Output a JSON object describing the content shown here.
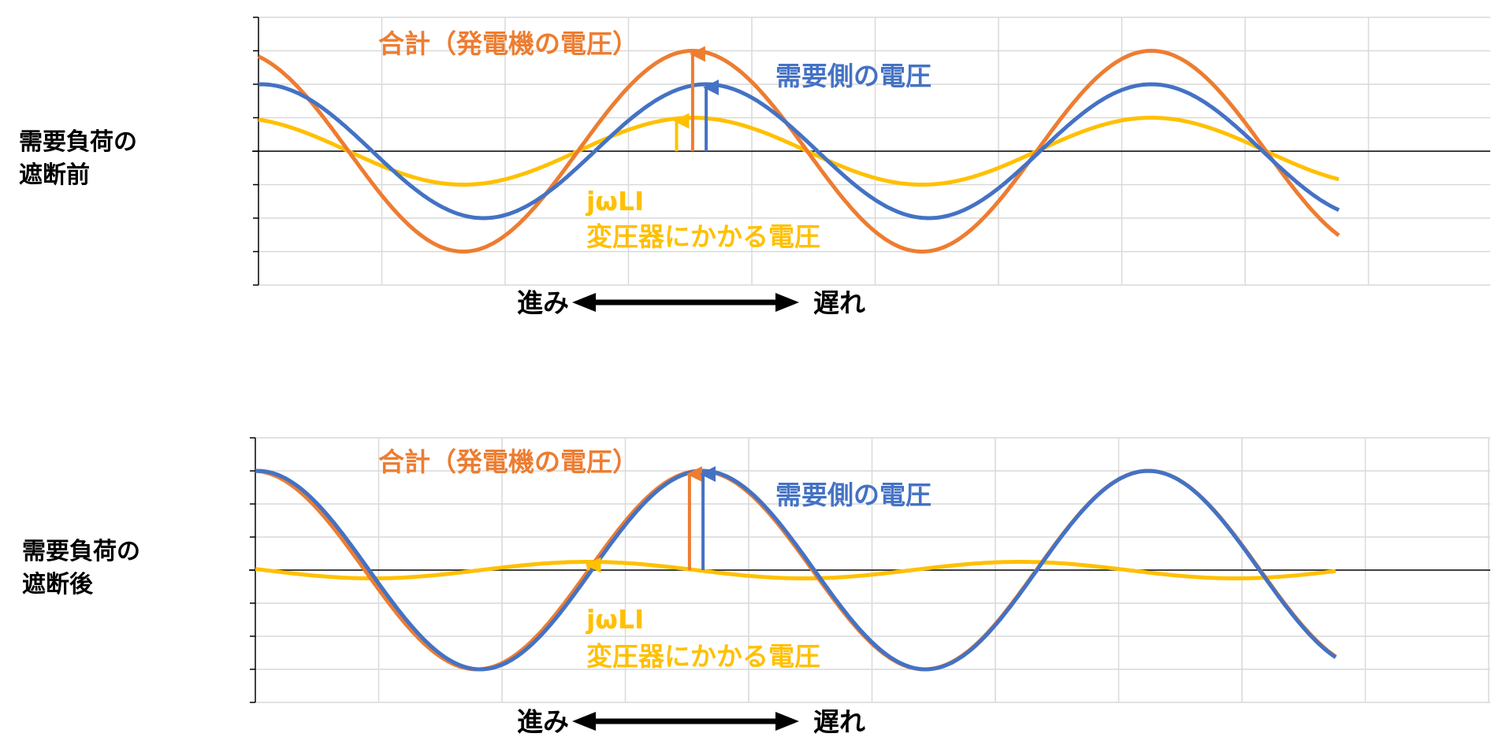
{
  "colors": {
    "total": "#ED7D31",
    "demand": "#4472C4",
    "transformer": "#FFC000",
    "grid": "#D9D9D9",
    "axis": "#000000"
  },
  "chart_data": [
    {
      "type": "line",
      "row_label": "需要負荷の\n遮断前",
      "annotations": {
        "total": "合計（発電機の電圧）",
        "demand": "需要側の電圧",
        "transformer_line1": "jωLI",
        "transformer_line2": "変圧器にかかる電圧",
        "lead": "進み",
        "lag": "遅れ"
      },
      "ylim": [
        -4,
        4
      ],
      "grid": true,
      "series": [
        {
          "key": "total",
          "color": "#ED7D31",
          "amplitude": 3.0,
          "peaks_x": [
            0,
            3.52,
            7.24
          ],
          "x_end": 8.77
        },
        {
          "key": "demand",
          "color": "#4472C4",
          "amplitude": 2.0,
          "peaks_x": [
            0,
            3.63,
            7.24
          ],
          "x_end": 8.77
        },
        {
          "key": "transformer",
          "color": "#FFC000",
          "amplitude": 1.0,
          "peaks_x": [
            0,
            3.52,
            7.24
          ],
          "x_end": 8.77
        }
      ],
      "phasor_arrows": [
        {
          "series": "transformer",
          "x": 3.39,
          "value": 1.0
        },
        {
          "series": "total",
          "x": 3.52,
          "value": 3.0
        },
        {
          "series": "demand",
          "x": 3.63,
          "value": 2.0
        }
      ]
    },
    {
      "type": "line",
      "row_label": "需要負荷の\n遮断後",
      "annotations": {
        "total": "合計（発電機の電圧）",
        "demand": "需要側の電圧",
        "transformer_line1": "jωLI",
        "transformer_line2": "変圧器にかかる電圧",
        "lead": "進み",
        "lag": "遅れ"
      },
      "ylim": [
        -4,
        4
      ],
      "grid": true,
      "series": [
        {
          "key": "total",
          "color": "#ED7D31",
          "amplitude": 3.0,
          "peaks_x": [
            0,
            3.61,
            7.24
          ],
          "x_end": 8.77
        },
        {
          "key": "demand",
          "color": "#4472C4",
          "amplitude": 3.0,
          "peaks_x": [
            0,
            3.63,
            7.24
          ],
          "x_end": 8.77
        },
        {
          "key": "transformer",
          "color": "#FFC000",
          "amplitude": 0.25,
          "peaks_x": [
            -1.0,
            2.7,
            6.2
          ],
          "x_end": 8.77
        }
      ],
      "phasor_arrows": [
        {
          "series": "transformer",
          "x": 2.7,
          "value": 0.25
        },
        {
          "series": "total",
          "x": 3.52,
          "value": 3.0
        },
        {
          "series": "demand",
          "x": 3.63,
          "value": 3.0
        }
      ]
    }
  ]
}
